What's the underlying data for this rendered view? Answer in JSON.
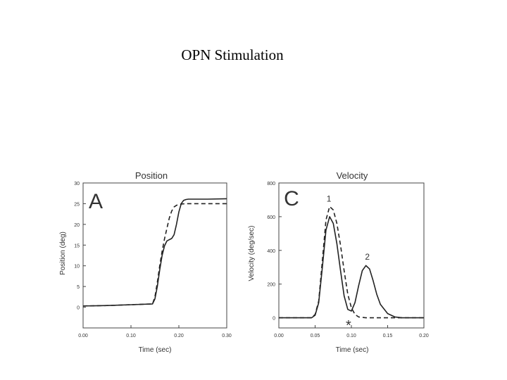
{
  "slide": {
    "title": "OPN Stimulation"
  },
  "colors": {
    "ink": "#222222",
    "axis": "#444444"
  },
  "chart_data": [
    {
      "type": "line",
      "panel_label": "A",
      "title": "Position",
      "xlabel": "Time (sec)",
      "ylabel": "Position (deg)",
      "xlim": [
        0,
        0.3
      ],
      "ylim": [
        -5,
        30
      ],
      "x_ticks": [
        "0.00",
        "0.10",
        "0.20",
        "0.30"
      ],
      "x_tick_values": [
        0,
        0.1,
        0.2,
        0.3
      ],
      "y_ticks": [
        "0",
        "5",
        "10",
        "15",
        "20",
        "25",
        "30"
      ],
      "y_tick_values": [
        0,
        5,
        10,
        15,
        20,
        25,
        30
      ],
      "series": [
        {
          "name": "solid",
          "dash": false,
          "x": [
            0,
            0.05,
            0.1,
            0.145,
            0.15,
            0.155,
            0.16,
            0.165,
            0.17,
            0.175,
            0.18,
            0.185,
            0.19,
            0.195,
            0.2,
            0.205,
            0.21,
            0.215,
            0.22,
            0.23,
            0.26,
            0.3
          ],
          "y": [
            0.3,
            0.4,
            0.6,
            0.8,
            2.0,
            5.0,
            9.0,
            12.5,
            14.8,
            16.0,
            16.3,
            16.6,
            17.5,
            20.0,
            23.0,
            25.0,
            25.8,
            26.0,
            26.1,
            26.1,
            26.1,
            26.2
          ]
        },
        {
          "name": "dashed",
          "dash": true,
          "x": [
            0,
            0.05,
            0.1,
            0.145,
            0.15,
            0.155,
            0.16,
            0.165,
            0.17,
            0.175,
            0.18,
            0.185,
            0.19,
            0.195,
            0.2,
            0.205,
            0.215,
            0.23,
            0.26,
            0.3
          ],
          "y": [
            0.3,
            0.4,
            0.6,
            0.8,
            2.5,
            6.0,
            10.0,
            13.5,
            16.5,
            19.0,
            21.5,
            23.2,
            24.2,
            24.6,
            24.8,
            24.9,
            25.0,
            25.0,
            25.0,
            25.0
          ]
        }
      ]
    },
    {
      "type": "line",
      "panel_label": "C",
      "title": "Velocity",
      "xlabel": "Time (sec)",
      "ylabel": "Velocity (deg/sec)",
      "xlim": [
        0,
        0.2
      ],
      "ylim": [
        -60,
        800
      ],
      "x_ticks": [
        "0.00",
        "0.05",
        "0.10",
        "0.15",
        "0.20"
      ],
      "x_tick_values": [
        0,
        0.05,
        0.1,
        0.15,
        0.2
      ],
      "y_ticks": [
        "0",
        "200",
        "400",
        "600",
        "800"
      ],
      "y_tick_values": [
        0,
        200,
        400,
        600,
        800
      ],
      "annotations": [
        {
          "text": "1",
          "x": 0.069,
          "y": 690
        },
        {
          "text": "2",
          "x": 0.122,
          "y": 345
        },
        {
          "text": "*",
          "x": 0.096,
          "y": -40
        }
      ],
      "series": [
        {
          "name": "solid",
          "dash": false,
          "x": [
            0,
            0.045,
            0.05,
            0.055,
            0.06,
            0.065,
            0.07,
            0.075,
            0.08,
            0.085,
            0.09,
            0.095,
            0.1,
            0.105,
            0.11,
            0.115,
            0.12,
            0.125,
            0.13,
            0.135,
            0.14,
            0.15,
            0.16,
            0.17,
            0.2
          ],
          "y": [
            0,
            0,
            15,
            90,
            300,
            520,
            600,
            560,
            440,
            280,
            130,
            50,
            40,
            90,
            190,
            280,
            310,
            290,
            220,
            140,
            80,
            25,
            5,
            0,
            0
          ]
        },
        {
          "name": "dashed",
          "dash": true,
          "x": [
            0,
            0.045,
            0.05,
            0.055,
            0.06,
            0.065,
            0.07,
            0.075,
            0.08,
            0.085,
            0.09,
            0.095,
            0.1,
            0.105,
            0.11,
            0.12,
            0.15,
            0.2
          ],
          "y": [
            0,
            0,
            20,
            100,
            340,
            580,
            660,
            640,
            560,
            430,
            280,
            140,
            60,
            20,
            5,
            0,
            0,
            0
          ]
        }
      ]
    }
  ]
}
